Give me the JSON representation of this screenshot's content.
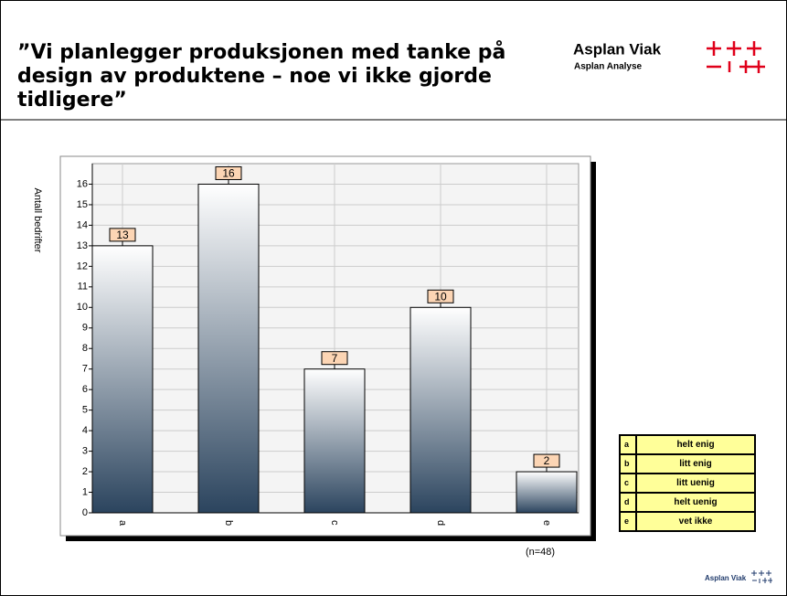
{
  "header": {
    "title": [
      "”Vi planlegger produksjonen med tanke på",
      "design av produktene – noe vi ikke gjorde",
      "tidligere”"
    ]
  },
  "logo": {
    "name": "Asplan Viak",
    "subtitle": "Asplan Analyse"
  },
  "footer_logo": {
    "name": "Asplan Viak"
  },
  "chart_data": {
    "type": "bar",
    "ylabel": "Antall bedrifter",
    "categories": [
      "a",
      "b",
      "c",
      "d",
      "e"
    ],
    "values": [
      13,
      16,
      7,
      10,
      2
    ],
    "color_top": "#ffffff",
    "color_bottom": "#2b445e",
    "label_fill": "#fcd5b4",
    "ylim": [
      0,
      17
    ],
    "yticks": [
      0,
      1,
      2,
      3,
      4,
      5,
      6,
      7,
      8,
      9,
      10,
      11,
      12,
      13,
      14,
      15,
      16
    ],
    "grid": true,
    "note": "(n=48)",
    "legend_table": [
      {
        "key": "a",
        "label": "helt enig"
      },
      {
        "key": "b",
        "label": "litt enig"
      },
      {
        "key": "c",
        "label": "litt uenig"
      },
      {
        "key": "d",
        "label": "helt uenig"
      },
      {
        "key": "e",
        "label": "vet ikke"
      }
    ],
    "legend_fill": "#ffff99"
  }
}
